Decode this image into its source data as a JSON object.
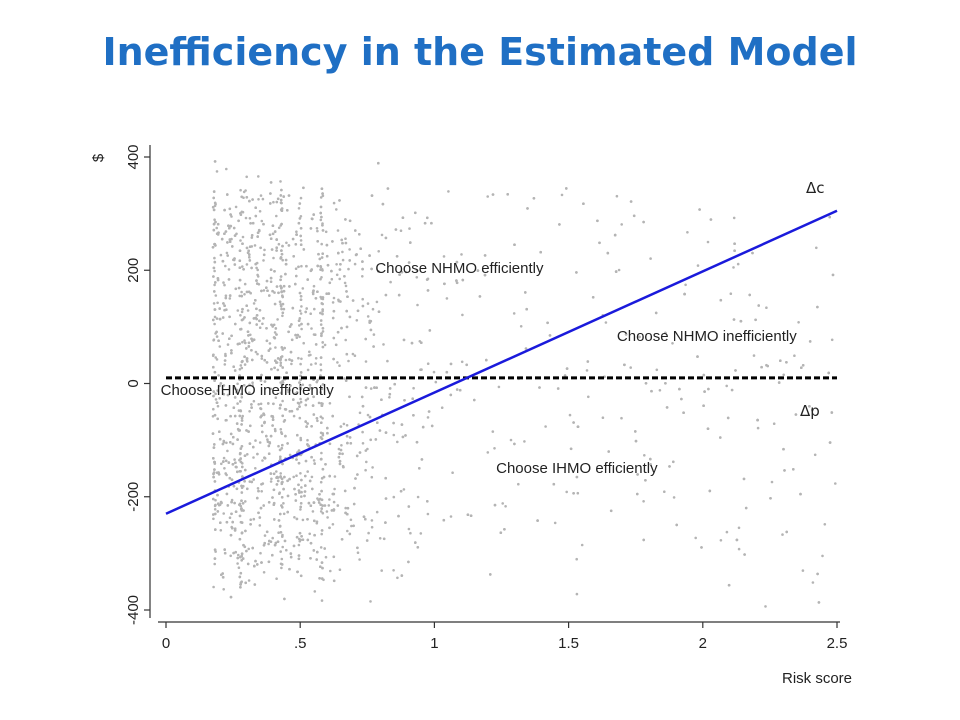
{
  "slide": {
    "title": "Inefficiency in the Estimated Model"
  },
  "chart_data": {
    "type": "scatter",
    "xlabel": "Risk score",
    "ylabel": "$",
    "xlim": [
      0,
      2.5
    ],
    "ylim": [
      -400,
      400
    ],
    "x_ticks": [
      0,
      0.5,
      1,
      1.5,
      2,
      2.5
    ],
    "x_tick_labels": [
      "0",
      ".5",
      "1",
      "1.5",
      "2",
      "2.5"
    ],
    "y_ticks": [
      -400,
      -200,
      0,
      200,
      400
    ],
    "y_tick_labels": [
      "-400",
      "-200",
      "0",
      "200",
      "400"
    ],
    "grid": false,
    "lines": [
      {
        "name": "Δc",
        "style": "solid",
        "color": "#1a1adb",
        "x": [
          0,
          2.5
        ],
        "y": [
          -230,
          305
        ]
      },
      {
        "name": "Δp",
        "style": "dashed",
        "color": "#000000",
        "x": [
          0,
          2.5
        ],
        "y": [
          10,
          10
        ]
      }
    ],
    "scatter_series": {
      "color": "#b4b4b4",
      "description_of_distribution": "dense grey points, concentrated at risk score 0.2-1.0, y between -400 and 400"
    },
    "annotations": [
      {
        "text": "Choose NHMO efficiently",
        "x": 0.78,
        "y": 195
      },
      {
        "text": "Choose NHMO inefficiently",
        "x": 1.68,
        "y": 75
      },
      {
        "text": "Choose IHMO inefficiently",
        "x": -0.02,
        "y": -20
      },
      {
        "text": "Choose IHMO efficiently",
        "x": 1.23,
        "y": -158
      }
    ]
  },
  "colors": {
    "title": "#1f6fc4",
    "scatter": "#b4b4b4",
    "dc_line": "#1a1adb",
    "dp_line": "#000000"
  }
}
